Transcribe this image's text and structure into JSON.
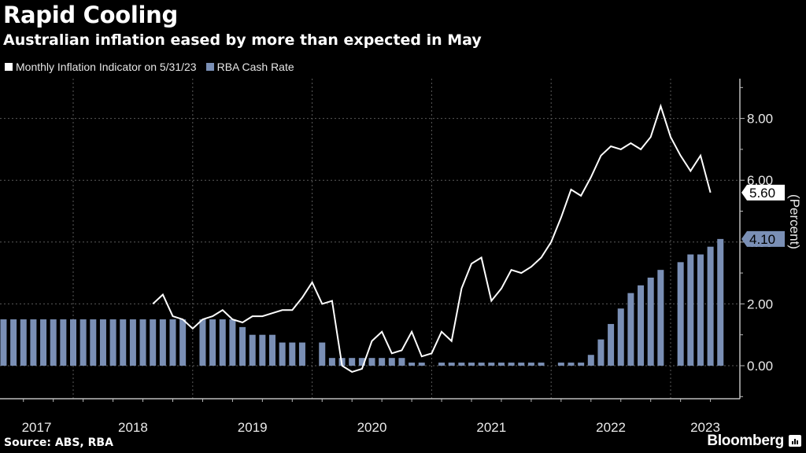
{
  "header": {
    "title": "Rapid Cooling",
    "subtitle": "Australian inflation eased by more than expected in May"
  },
  "legend": [
    {
      "label": "Monthly Inflation Indicator on 5/31/23",
      "color": "#ffffff"
    },
    {
      "label": "RBA Cash Rate",
      "color": "#7a8fb5"
    }
  ],
  "footer": {
    "source": "Source: ABS, RBA",
    "brand": "Bloomberg"
  },
  "chart_data": {
    "type": "bar+line",
    "title": "Rapid Cooling",
    "subtitle": "Australian inflation eased by more than expected in May",
    "ylabel": "(Percent)",
    "ylim": [
      -1.1,
      9.3
    ],
    "yticks": [
      "0.00",
      "2.00",
      "4.00",
      "6.00",
      "8.00"
    ],
    "ytick_values": [
      0,
      2,
      4,
      6,
      8
    ],
    "grid": true,
    "legend_position": "top-left",
    "xticks": [
      "2017",
      "2018",
      "2019",
      "2020",
      "2021",
      "2022",
      "2023"
    ],
    "x_start": "2017-06",
    "series": [
      {
        "name": "RBA Cash Rate",
        "kind": "bar",
        "color": "#7a8fb5",
        "start": "2017-06",
        "values": [
          1.5,
          1.5,
          1.5,
          1.5,
          1.5,
          1.5,
          1.5,
          1.5,
          1.5,
          1.5,
          1.5,
          1.5,
          1.5,
          1.5,
          1.5,
          1.5,
          1.5,
          1.5,
          1.5,
          null,
          1.5,
          1.5,
          1.5,
          1.5,
          1.25,
          1.0,
          1.0,
          1.0,
          0.75,
          0.75,
          0.75,
          null,
          0.75,
          0.25,
          0.25,
          0.25,
          0.25,
          0.25,
          0.25,
          0.25,
          0.25,
          0.1,
          0.1,
          null,
          0.1,
          0.1,
          0.1,
          0.1,
          0.1,
          0.1,
          0.1,
          0.1,
          0.1,
          0.1,
          0.1,
          null,
          0.1,
          0.1,
          0.1,
          0.35,
          0.85,
          1.35,
          1.85,
          2.35,
          2.6,
          2.85,
          3.1,
          null,
          3.35,
          3.6,
          3.6,
          3.85,
          4.1
        ],
        "last_value_label": "4.10"
      },
      {
        "name": "Monthly Inflation Indicator on 5/31/23",
        "kind": "line",
        "color": "#ffffff",
        "start": "2018-09",
        "values": [
          2.0,
          2.3,
          1.6,
          1.5,
          1.2,
          1.5,
          1.6,
          1.8,
          1.5,
          1.4,
          1.6,
          1.6,
          1.7,
          1.8,
          1.8,
          2.2,
          2.7,
          2.0,
          2.1,
          0.0,
          -0.2,
          -0.1,
          0.8,
          1.1,
          0.4,
          0.5,
          1.1,
          0.3,
          0.4,
          1.1,
          0.8,
          2.5,
          3.3,
          3.5,
          2.1,
          2.5,
          3.1,
          3.0,
          3.2,
          3.5,
          4.0,
          4.8,
          5.7,
          5.5,
          6.1,
          6.8,
          7.1,
          7.0,
          7.2,
          7.0,
          7.4,
          8.4,
          7.4,
          6.8,
          6.3,
          6.8,
          5.6
        ],
        "last_value_label": "5.60"
      }
    ]
  }
}
